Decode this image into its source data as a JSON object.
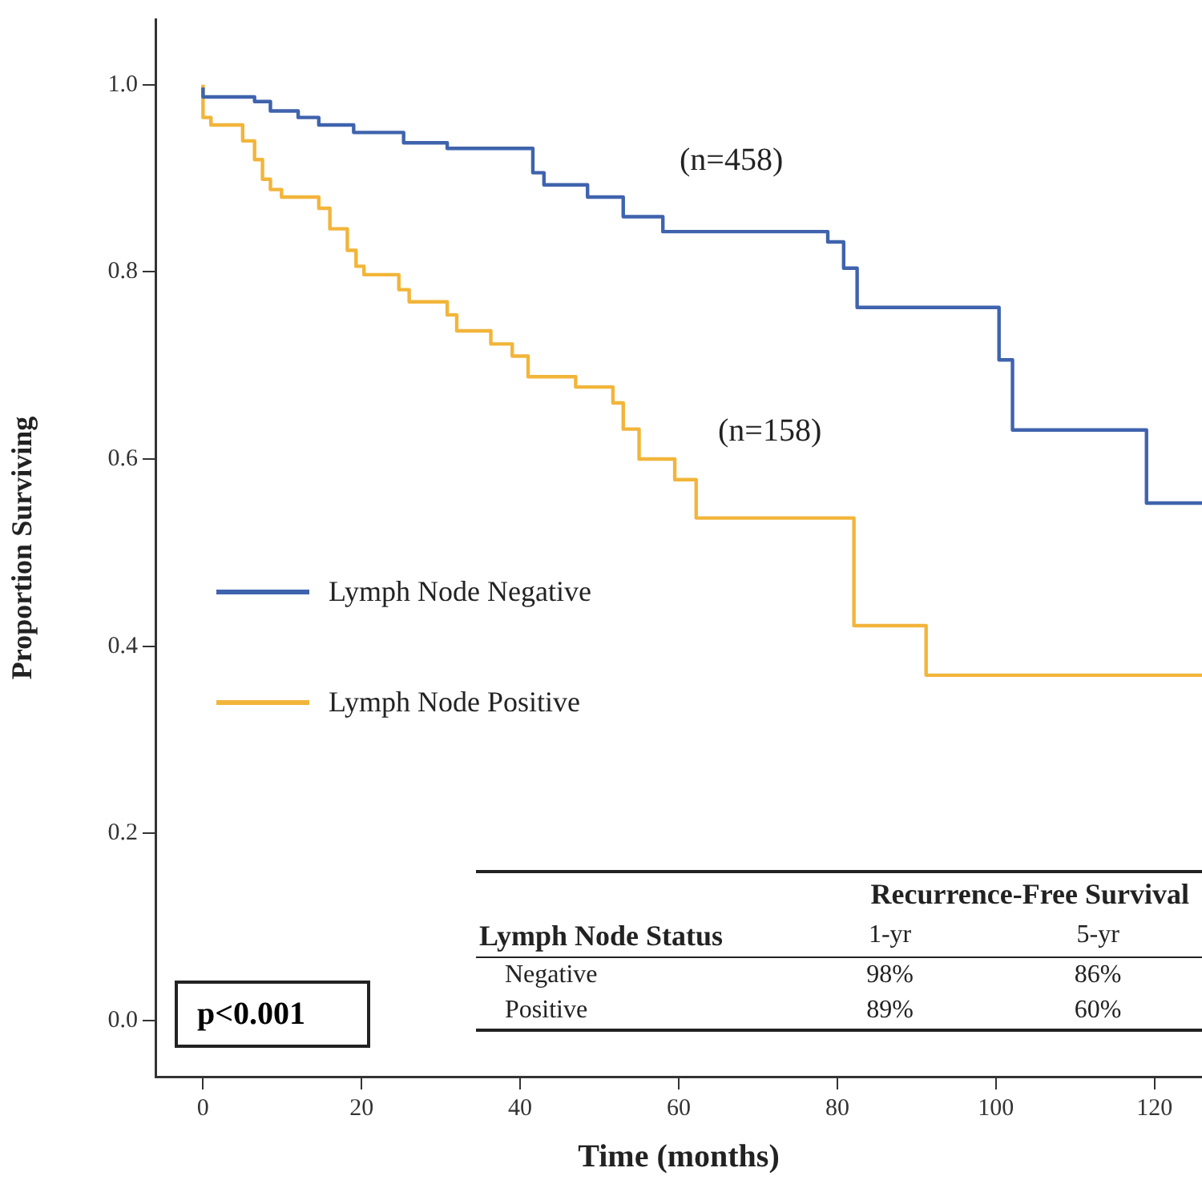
{
  "chart_data": {
    "type": "step",
    "xlabel": "Time (months)",
    "ylabel": "Proportion Surviving",
    "xlim": [
      -6,
      126
    ],
    "xticks": [
      0,
      20,
      40,
      60,
      80,
      100,
      120
    ],
    "ylim": [
      -0.06,
      1.07
    ],
    "yticks": [
      {
        "value": 0,
        "label": "0.0"
      },
      0.2,
      0.4,
      0.6,
      0.8,
      {
        "value": 1,
        "label": "1.0"
      }
    ],
    "grid": false,
    "legend": "left",
    "line_style": "solid",
    "series": [
      {
        "name": "Lymph Node Negative",
        "color": "#3f63ad",
        "x": [
          0,
          6.5,
          8.5,
          12,
          14.6,
          19,
          25.3,
          30.8,
          41.6,
          43,
          48.5,
          53,
          58,
          78.8,
          80.8,
          82.5,
          100.4,
          102.1,
          119,
          122,
          126
        ],
        "values": [
          0.997,
          0.987,
          0.982,
          0.972,
          0.965,
          0.957,
          0.949,
          0.938,
          0.932,
          0.906,
          0.893,
          0.88,
          0.859,
          0.843,
          0.832,
          0.804,
          0.762,
          0.706,
          0.631,
          0.553,
          0.553
        ]
      },
      {
        "name": "Lymph Node Positive",
        "color": "#f2b53a",
        "x": [
          0,
          1,
          5,
          6.5,
          7.5,
          8.5,
          9.9,
          14.6,
          16,
          18.2,
          19.3,
          20.3,
          24.7,
          26,
          30.8,
          32,
          36.3,
          39,
          41,
          47,
          51.7,
          53,
          55,
          59.5,
          62.2,
          82.1,
          91.2,
          92.6,
          126
        ],
        "values": [
          1.0,
          0.965,
          0.957,
          0.94,
          0.92,
          0.899,
          0.888,
          0.88,
          0.868,
          0.846,
          0.823,
          0.806,
          0.797,
          0.781,
          0.768,
          0.754,
          0.737,
          0.723,
          0.71,
          0.688,
          0.677,
          0.66,
          0.632,
          0.6,
          0.578,
          0.537,
          0.422,
          0.369,
          0.369
        ]
      }
    ],
    "annotations": [
      "(n=458)",
      "(n=158)",
      "p<0.001",
      "Recurrence-Free Survival",
      "Lymph Node Status",
      "1-yr",
      "5-yr",
      "Negative",
      "98%",
      "86%",
      "Positive",
      "89%",
      "60%"
    ]
  }
}
